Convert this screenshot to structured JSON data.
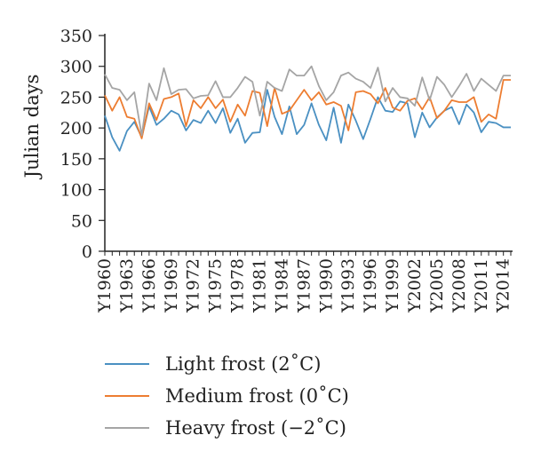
{
  "chart_data": {
    "type": "line",
    "title": "",
    "xlabel": "",
    "ylabel": "Julian days",
    "ylim": [
      0,
      350
    ],
    "yticks": [
      0,
      50,
      100,
      150,
      200,
      250,
      300,
      350
    ],
    "grid": false,
    "legend_position": "bottom",
    "x_tick_labels": [
      "Y1960",
      "Y1963",
      "Y1966",
      "Y1969",
      "Y1972",
      "Y1975",
      "Y1978",
      "Y1981",
      "Y1984",
      "Y1987",
      "Y1990",
      "Y1993",
      "Y1996",
      "Y1999",
      "Y2002",
      "Y2005",
      "Y2008",
      "Y2011",
      "Y2014"
    ],
    "x": [
      1960,
      1961,
      1962,
      1963,
      1964,
      1965,
      1966,
      1967,
      1968,
      1969,
      1970,
      1971,
      1972,
      1973,
      1974,
      1975,
      1976,
      1977,
      1978,
      1979,
      1980,
      1981,
      1982,
      1983,
      1984,
      1985,
      1986,
      1987,
      1988,
      1989,
      1990,
      1991,
      1992,
      1993,
      1994,
      1995,
      1996,
      1997,
      1998,
      1999,
      2000,
      2001,
      2002,
      2003,
      2004,
      2005,
      2006,
      2007,
      2008,
      2009,
      2010,
      2011,
      2012,
      2013,
      2014,
      2015
    ],
    "series": [
      {
        "name": "Light frost (2˚C)",
        "color": "#4a90c2",
        "values": [
          220,
          185,
          163,
          195,
          210,
          185,
          235,
          205,
          215,
          228,
          222,
          196,
          213,
          208,
          228,
          208,
          232,
          192,
          215,
          176,
          192,
          193,
          262,
          218,
          190,
          235,
          190,
          205,
          240,
          205,
          180,
          233,
          176,
          238,
          212,
          182,
          215,
          250,
          228,
          226,
          243,
          240,
          185,
          225,
          201,
          217,
          228,
          234,
          206,
          238,
          225,
          193,
          210,
          208,
          201,
          201
        ]
      },
      {
        "name": "Medium frost (0˚C)",
        "color": "#ed7d31",
        "values": [
          253,
          228,
          250,
          218,
          215,
          183,
          240,
          213,
          247,
          250,
          256,
          203,
          245,
          232,
          250,
          232,
          246,
          210,
          238,
          220,
          260,
          257,
          203,
          265,
          223,
          228,
          245,
          262,
          245,
          258,
          238,
          242,
          236,
          196,
          258,
          260,
          255,
          240,
          265,
          233,
          228,
          244,
          248,
          230,
          250,
          216,
          228,
          245,
          242,
          242,
          250,
          210,
          222,
          215,
          278,
          278
        ]
      },
      {
        "name": "Heavy frost (−2˚C)",
        "color": "#a5a5a5",
        "values": [
          287,
          265,
          262,
          245,
          258,
          188,
          272,
          245,
          297,
          255,
          262,
          263,
          248,
          252,
          253,
          276,
          250,
          250,
          265,
          283,
          275,
          220,
          275,
          265,
          260,
          295,
          285,
          285,
          300,
          268,
          245,
          258,
          285,
          290,
          280,
          275,
          265,
          298,
          243,
          265,
          250,
          248,
          236,
          282,
          245,
          283,
          270,
          250,
          268,
          288,
          260,
          280,
          270,
          260,
          285,
          285
        ]
      }
    ]
  }
}
